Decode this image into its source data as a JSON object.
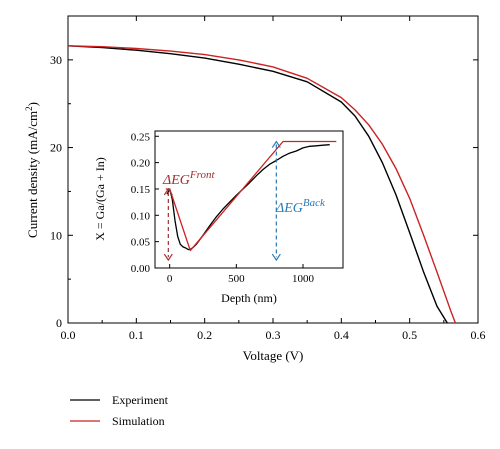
{
  "chart_data": [
    {
      "id": "main",
      "type": "line",
      "xlabel": "Voltage (V)",
      "ylabel_prefix": "Current density (mA/cm",
      "ylabel_sup": "2",
      "ylabel_suffix": ")",
      "xlim": [
        0.0,
        0.6
      ],
      "ylim": [
        0,
        35
      ],
      "x_ticks": [
        0.0,
        0.1,
        0.2,
        0.3,
        0.4,
        0.5,
        0.6
      ],
      "x_tick_labels": [
        "0.0",
        "0.1",
        "0.2",
        "0.3",
        "0.4",
        "0.5",
        "0.6"
      ],
      "y_ticks": [
        0,
        10,
        20,
        30
      ],
      "y_tick_labels": [
        "0",
        "10",
        "20",
        "30"
      ],
      "legend_position": "bottom-left, below plot",
      "series": [
        {
          "name": "Experiment",
          "color": "#000000",
          "x": [
            0.0,
            0.05,
            0.1,
            0.15,
            0.2,
            0.25,
            0.3,
            0.35,
            0.4,
            0.42,
            0.44,
            0.46,
            0.48,
            0.5,
            0.52,
            0.54,
            0.555
          ],
          "y": [
            31.6,
            31.4,
            31.1,
            30.7,
            30.2,
            29.5,
            28.7,
            27.5,
            25.2,
            23.6,
            21.3,
            18.3,
            14.6,
            10.3,
            5.9,
            1.9,
            0.0
          ]
        },
        {
          "name": "Simulation",
          "color": "#cc2222",
          "x": [
            0.0,
            0.05,
            0.1,
            0.15,
            0.2,
            0.25,
            0.3,
            0.35,
            0.4,
            0.42,
            0.44,
            0.46,
            0.48,
            0.5,
            0.52,
            0.54,
            0.56,
            0.567
          ],
          "y": [
            31.6,
            31.5,
            31.3,
            31.0,
            30.6,
            30.0,
            29.2,
            27.9,
            25.7,
            24.3,
            22.6,
            20.4,
            17.6,
            14.2,
            10.1,
            5.8,
            1.4,
            0.0
          ]
        }
      ]
    },
    {
      "id": "inset",
      "type": "line",
      "xlabel": "Depth (nm)",
      "ylabel": "X = Ga/(Ga + In)",
      "xlim": [
        -110,
        1300
      ],
      "ylim": [
        0,
        0.26
      ],
      "x_ticks": [
        0,
        500,
        1000
      ],
      "x_tick_labels": [
        "0",
        "500",
        "1000"
      ],
      "y_ticks": [
        0.0,
        0.05,
        0.1,
        0.15,
        0.2,
        0.25
      ],
      "y_tick_labels": [
        "0.00",
        "0.05",
        "0.10",
        "0.15",
        "0.20",
        "0.25"
      ],
      "series": [
        {
          "name": "Experiment",
          "color": "#000000",
          "x": [
            -20,
            0,
            20,
            40,
            60,
            80,
            100,
            120,
            140,
            160,
            180,
            200,
            250,
            300,
            350,
            400,
            450,
            500,
            550,
            600,
            650,
            700,
            750,
            800,
            850,
            900,
            950,
            1000,
            1050,
            1100,
            1150,
            1200
          ],
          "y": [
            0.14,
            0.15,
            0.13,
            0.09,
            0.06,
            0.045,
            0.04,
            0.038,
            0.035,
            0.036,
            0.04,
            0.045,
            0.062,
            0.08,
            0.097,
            0.112,
            0.125,
            0.138,
            0.15,
            0.162,
            0.175,
            0.187,
            0.197,
            0.204,
            0.212,
            0.218,
            0.222,
            0.228,
            0.231,
            0.232,
            0.233,
            0.234
          ]
        },
        {
          "name": "Simulation",
          "color": "#cc2222",
          "x": [
            -30,
            0,
            155,
            850,
            1250
          ],
          "y": [
            0.15,
            0.15,
            0.033,
            0.24,
            0.24
          ]
        }
      ],
      "annotations": [
        {
          "text": "ΔEG",
          "sup": "Front",
          "color": "#a03030",
          "arrow_x": -10,
          "arrow_y_top": 0.15,
          "arrow_y_bottom": 0.015
        },
        {
          "text": "ΔEG",
          "sup": "Back",
          "color": "#2a7ab8",
          "arrow_x": 800,
          "arrow_y_top": 0.24,
          "arrow_y_bottom": 0.015
        }
      ]
    }
  ]
}
